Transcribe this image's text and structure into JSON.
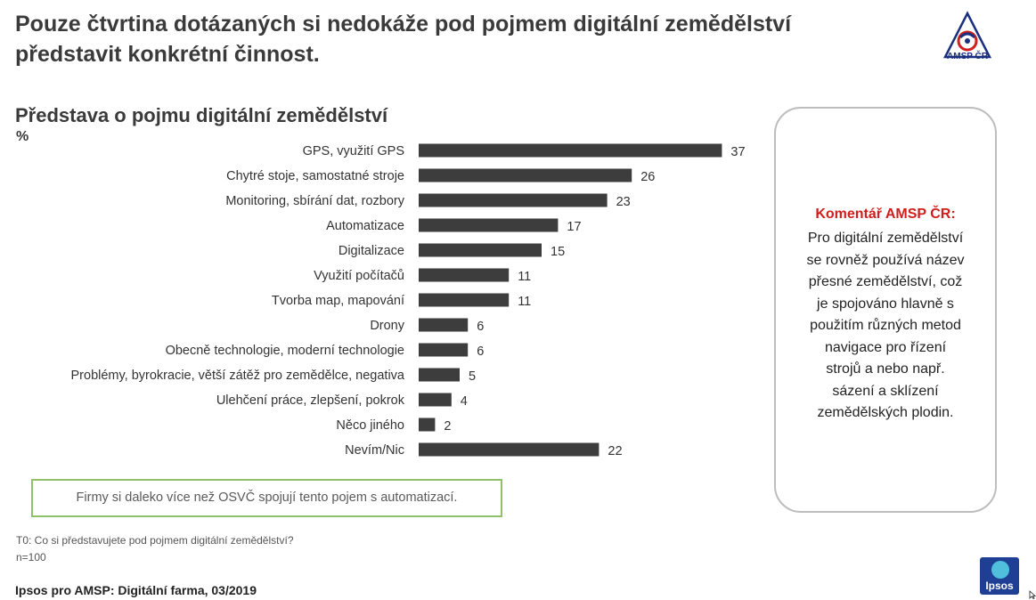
{
  "header": {
    "headline": "Pouze čtvrtina dotázaných si nedokáže pod pojmem digitální zemědělství představit konkrétní činnost.",
    "logo_text": "AMSP ČR"
  },
  "chart_data": {
    "type": "bar",
    "orientation": "horizontal",
    "title": "Představa o pojmu digitální zemědělství",
    "unit": "%",
    "categories": [
      "GPS, využití GPS",
      "Chytré stoje, samostatné stroje",
      "Monitoring, sbírání dat, rozbory",
      "Automatizace",
      "Digitalizace",
      "Využití počítačů",
      "Tvorba map, mapování",
      "Drony",
      "Obecně technologie, moderní technologie",
      "Problémy, byrokracie, větší zátěž pro zemědělce, negativa",
      "Ulehčení práce, zlepšení, pokrok",
      "Něco jiného",
      "Nevím/Nic"
    ],
    "values": [
      37,
      26,
      23,
      17,
      15,
      11,
      11,
      6,
      6,
      5,
      4,
      2,
      22
    ],
    "bar_color": "#3d3d3d",
    "grid": false
  },
  "comment": {
    "title": "Komentář AMSP ČR:",
    "lines": [
      "Pro digitální zemědělství",
      "se rovněž používá název",
      "přesné zemědělství, což",
      "je spojováno hlavně s",
      "použitím různých metod",
      "navigace pro řízení",
      "strojů a nebo např.",
      "sázení a sklízení",
      "zemědělských plodin."
    ]
  },
  "note": "Firmy si daleko více než OSVČ spojují tento pojem s automatizací.",
  "footer": {
    "question": "T0: Co si představujete pod pojmem digitální zemědělství?",
    "sample": "n=100",
    "source": "Ipsos pro AMSP: Digitální farma, 03/2019",
    "ipsos_logo_text": "Ipsos"
  }
}
